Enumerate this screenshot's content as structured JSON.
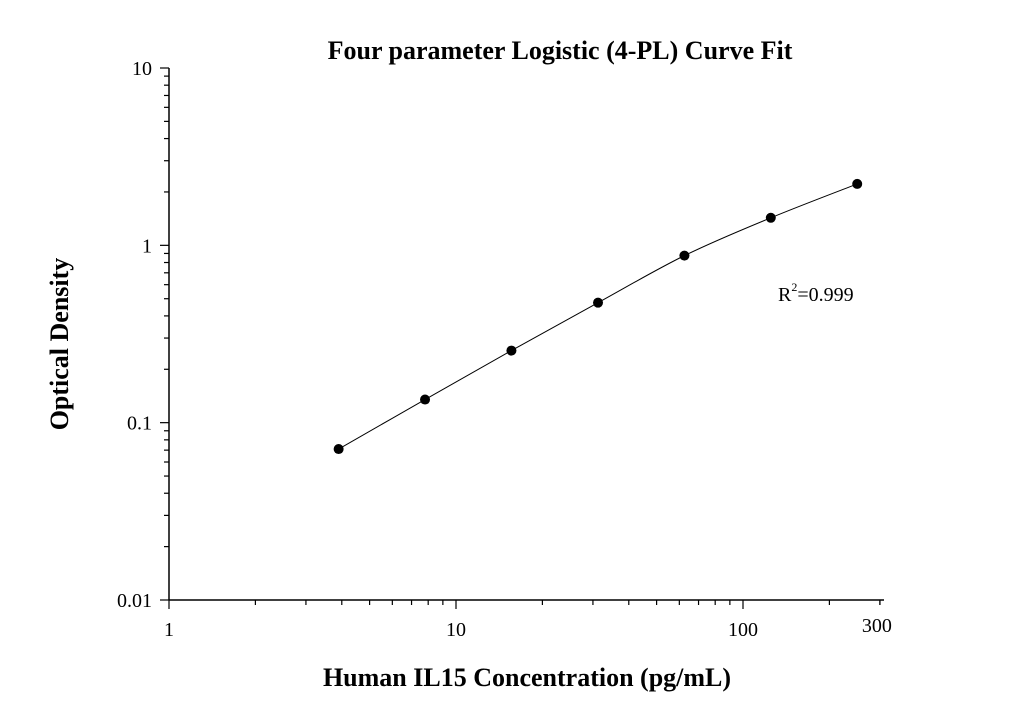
{
  "chart_data": {
    "type": "scatter",
    "title": "Four parameter Logistic (4-PL) Curve Fit",
    "xlabel": "Human IL15 Concentration (pg/mL)",
    "ylabel": "Optical Density",
    "x_scale": "log",
    "y_scale": "log",
    "xlim": [
      1,
      300
    ],
    "ylim": [
      0.01,
      10
    ],
    "x_ticks": [
      {
        "value": 1,
        "label": "1"
      },
      {
        "value": 10,
        "label": "10"
      },
      {
        "value": 100,
        "label": "100"
      },
      {
        "value": 300,
        "label": "300"
      }
    ],
    "y_ticks": [
      {
        "value": 0.01,
        "label": "0.01"
      },
      {
        "value": 0.1,
        "label": "0.1"
      },
      {
        "value": 1,
        "label": "1"
      },
      {
        "value": 10,
        "label": "10"
      }
    ],
    "grid": false,
    "series": [
      {
        "x": [
          3.9,
          7.8,
          15.6,
          31.25,
          62.5,
          125,
          250
        ],
        "y": [
          0.071,
          0.135,
          0.255,
          0.475,
          0.875,
          1.43,
          2.22
        ],
        "color": "#000000"
      }
    ],
    "fit_curve": {
      "model": "4-PL",
      "color": "#000000"
    },
    "annotation": {
      "base": "R",
      "superscript": "2",
      "text": "=0.999"
    }
  }
}
